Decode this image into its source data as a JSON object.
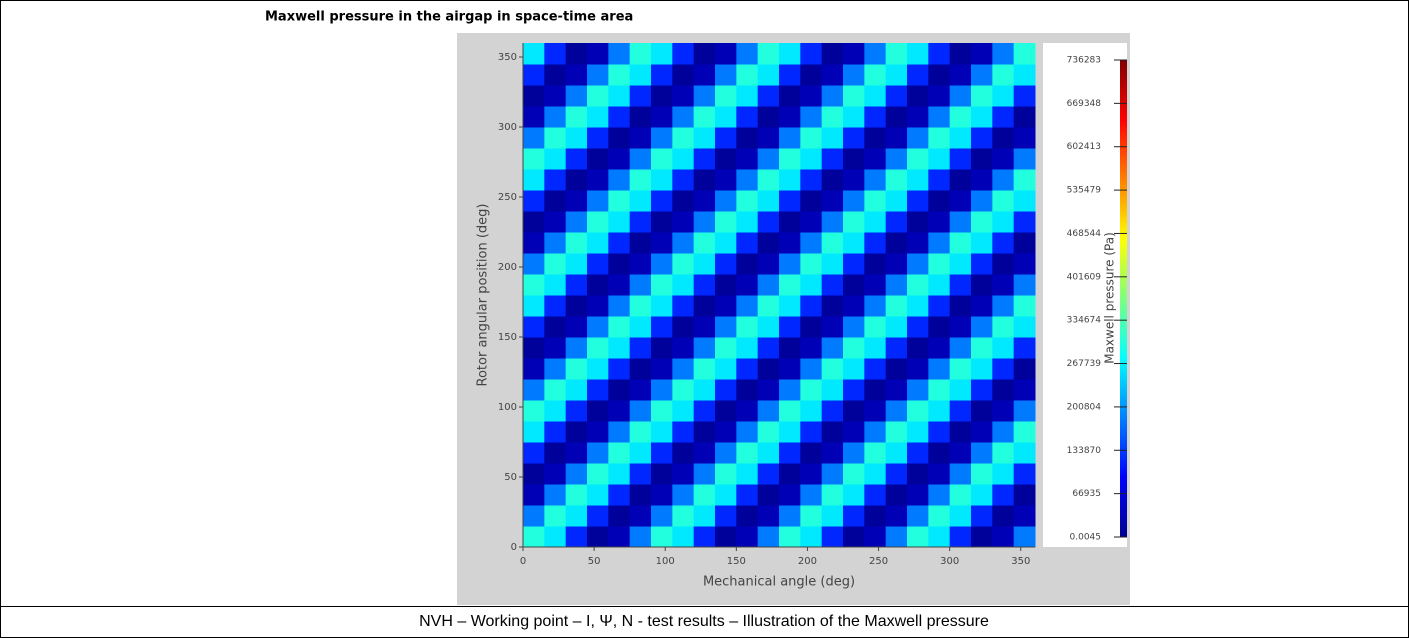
{
  "chart_data": {
    "type": "heatmap",
    "title": "Maxwell pressure in the airgap in space-time area",
    "xlabel": "Mechanical angle (deg)",
    "ylabel": "Rotor angular position (deg)",
    "colorbar_label": "Maxwell pressure (Pa)",
    "colormap": "jet",
    "x": [
      7.5,
      22.5,
      37.5,
      52.5,
      67.5,
      82.5,
      97.5,
      112.5,
      127.5,
      142.5,
      157.5,
      172.5,
      187.5,
      202.5,
      217.5,
      232.5,
      247.5,
      262.5,
      277.5,
      292.5,
      307.5,
      322.5,
      337.5,
      352.5
    ],
    "y": [
      7.5,
      22.5,
      37.5,
      52.5,
      67.5,
      82.5,
      97.5,
      112.5,
      127.5,
      142.5,
      157.5,
      172.5,
      187.5,
      202.5,
      217.5,
      232.5,
      247.5,
      262.5,
      277.5,
      292.5,
      307.5,
      322.5,
      337.5,
      352.5
    ],
    "z": [
      [
        300000,
        260000,
        120000,
        20000,
        40000,
        180000,
        300000,
        260000,
        120000,
        20000,
        40000,
        180000,
        300000,
        260000,
        120000,
        20000,
        40000,
        180000,
        300000,
        260000,
        120000,
        20000,
        40000,
        180000
      ],
      [
        180000,
        300000,
        260000,
        120000,
        20000,
        40000,
        180000,
        300000,
        260000,
        120000,
        20000,
        40000,
        180000,
        300000,
        260000,
        120000,
        20000,
        40000,
        180000,
        300000,
        260000,
        120000,
        20000,
        40000
      ],
      [
        40000,
        180000,
        300000,
        260000,
        120000,
        20000,
        40000,
        180000,
        300000,
        260000,
        120000,
        20000,
        40000,
        180000,
        300000,
        260000,
        120000,
        20000,
        40000,
        180000,
        300000,
        260000,
        120000,
        20000
      ],
      [
        20000,
        40000,
        180000,
        300000,
        260000,
        120000,
        20000,
        40000,
        180000,
        300000,
        260000,
        120000,
        20000,
        40000,
        180000,
        300000,
        260000,
        120000,
        20000,
        40000,
        180000,
        300000,
        260000,
        120000
      ],
      [
        120000,
        20000,
        40000,
        180000,
        300000,
        260000,
        120000,
        20000,
        40000,
        180000,
        300000,
        260000,
        120000,
        20000,
        40000,
        180000,
        300000,
        260000,
        120000,
        20000,
        40000,
        180000,
        300000,
        260000
      ],
      [
        260000,
        120000,
        20000,
        40000,
        180000,
        300000,
        260000,
        120000,
        20000,
        40000,
        180000,
        300000,
        260000,
        120000,
        20000,
        40000,
        180000,
        300000,
        260000,
        120000,
        20000,
        40000,
        180000,
        300000
      ],
      [
        300000,
        260000,
        120000,
        20000,
        40000,
        180000,
        300000,
        260000,
        120000,
        20000,
        40000,
        180000,
        300000,
        260000,
        120000,
        20000,
        40000,
        180000,
        300000,
        260000,
        120000,
        20000,
        40000,
        180000
      ],
      [
        180000,
        300000,
        260000,
        120000,
        20000,
        40000,
        180000,
        300000,
        260000,
        120000,
        20000,
        40000,
        180000,
        300000,
        260000,
        120000,
        20000,
        40000,
        180000,
        300000,
        260000,
        120000,
        20000,
        40000
      ],
      [
        40000,
        180000,
        300000,
        260000,
        120000,
        20000,
        40000,
        180000,
        300000,
        260000,
        120000,
        20000,
        40000,
        180000,
        300000,
        260000,
        120000,
        20000,
        40000,
        180000,
        300000,
        260000,
        120000,
        20000
      ],
      [
        20000,
        40000,
        180000,
        300000,
        260000,
        120000,
        20000,
        40000,
        180000,
        300000,
        260000,
        120000,
        20000,
        40000,
        180000,
        300000,
        260000,
        120000,
        20000,
        40000,
        180000,
        300000,
        260000,
        120000
      ],
      [
        120000,
        20000,
        40000,
        180000,
        300000,
        260000,
        120000,
        20000,
        40000,
        180000,
        300000,
        260000,
        120000,
        20000,
        40000,
        180000,
        300000,
        260000,
        120000,
        20000,
        40000,
        180000,
        300000,
        260000
      ],
      [
        260000,
        120000,
        20000,
        40000,
        180000,
        300000,
        260000,
        120000,
        20000,
        40000,
        180000,
        300000,
        260000,
        120000,
        20000,
        40000,
        180000,
        300000,
        260000,
        120000,
        20000,
        40000,
        180000,
        300000
      ],
      [
        300000,
        260000,
        120000,
        20000,
        40000,
        180000,
        300000,
        260000,
        120000,
        20000,
        40000,
        180000,
        300000,
        260000,
        120000,
        20000,
        40000,
        180000,
        300000,
        260000,
        120000,
        20000,
        40000,
        180000
      ],
      [
        180000,
        300000,
        260000,
        120000,
        20000,
        40000,
        180000,
        300000,
        260000,
        120000,
        20000,
        40000,
        180000,
        300000,
        260000,
        120000,
        20000,
        40000,
        180000,
        300000,
        260000,
        120000,
        20000,
        40000
      ],
      [
        40000,
        180000,
        300000,
        260000,
        120000,
        20000,
        40000,
        180000,
        300000,
        260000,
        120000,
        20000,
        40000,
        180000,
        300000,
        260000,
        120000,
        20000,
        40000,
        180000,
        300000,
        260000,
        120000,
        20000
      ],
      [
        20000,
        40000,
        180000,
        300000,
        260000,
        120000,
        20000,
        40000,
        180000,
        300000,
        260000,
        120000,
        20000,
        40000,
        180000,
        300000,
        260000,
        120000,
        20000,
        40000,
        180000,
        300000,
        260000,
        120000
      ],
      [
        120000,
        20000,
        40000,
        180000,
        300000,
        260000,
        120000,
        20000,
        40000,
        180000,
        300000,
        260000,
        120000,
        20000,
        40000,
        180000,
        300000,
        260000,
        120000,
        20000,
        40000,
        180000,
        300000,
        260000
      ],
      [
        260000,
        120000,
        20000,
        40000,
        180000,
        300000,
        260000,
        120000,
        20000,
        40000,
        180000,
        300000,
        260000,
        120000,
        20000,
        40000,
        180000,
        300000,
        260000,
        120000,
        20000,
        40000,
        180000,
        300000
      ],
      [
        300000,
        260000,
        120000,
        20000,
        40000,
        180000,
        300000,
        260000,
        120000,
        20000,
        40000,
        180000,
        300000,
        260000,
        120000,
        20000,
        40000,
        180000,
        300000,
        260000,
        120000,
        20000,
        40000,
        180000
      ],
      [
        180000,
        300000,
        260000,
        120000,
        20000,
        40000,
        180000,
        300000,
        260000,
        120000,
        20000,
        40000,
        180000,
        300000,
        260000,
        120000,
        20000,
        40000,
        180000,
        300000,
        260000,
        120000,
        20000,
        40000
      ],
      [
        40000,
        180000,
        300000,
        260000,
        120000,
        20000,
        40000,
        180000,
        300000,
        260000,
        120000,
        20000,
        40000,
        180000,
        300000,
        260000,
        120000,
        20000,
        40000,
        180000,
        300000,
        260000,
        120000,
        20000
      ],
      [
        20000,
        40000,
        180000,
        300000,
        260000,
        120000,
        20000,
        40000,
        180000,
        300000,
        260000,
        120000,
        20000,
        40000,
        180000,
        300000,
        260000,
        120000,
        20000,
        40000,
        180000,
        300000,
        260000,
        120000
      ],
      [
        120000,
        20000,
        40000,
        180000,
        300000,
        260000,
        120000,
        20000,
        40000,
        180000,
        300000,
        260000,
        120000,
        20000,
        40000,
        180000,
        300000,
        260000,
        120000,
        20000,
        40000,
        180000,
        300000,
        260000
      ],
      [
        260000,
        120000,
        20000,
        40000,
        180000,
        300000,
        260000,
        120000,
        20000,
        40000,
        180000,
        300000,
        260000,
        120000,
        20000,
        40000,
        180000,
        300000,
        260000,
        120000,
        20000,
        40000,
        180000,
        300000
      ]
    ],
    "xlim": [
      0,
      360
    ],
    "xticks": [
      0,
      50,
      100,
      150,
      200,
      250,
      300,
      350
    ],
    "ylim": [
      0,
      360
    ],
    "yticks": [
      0,
      50,
      100,
      150,
      200,
      250,
      300,
      350
    ],
    "clim": [
      0.0045,
      736283
    ],
    "cticks": [
      0.0045,
      66935,
      133870,
      200804,
      267739,
      334674,
      401609,
      468544,
      535479,
      602413,
      669348,
      736283
    ]
  },
  "caption": "NVH – Working point – I, Ψ, N - test results – Illustration of the Maxwell pressure"
}
